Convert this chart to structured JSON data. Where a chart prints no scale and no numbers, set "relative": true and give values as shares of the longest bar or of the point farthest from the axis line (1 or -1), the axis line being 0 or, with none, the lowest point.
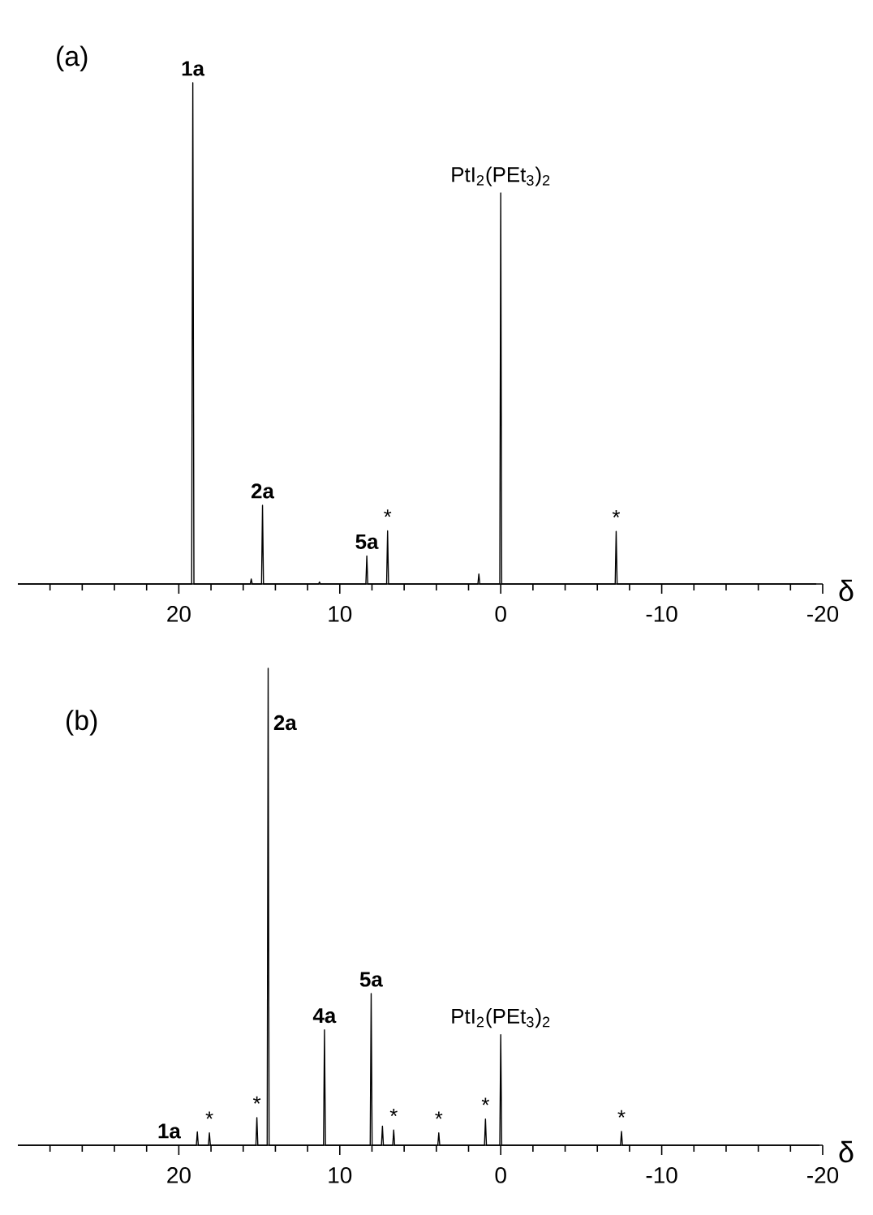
{
  "chart_data": [
    {
      "type": "line",
      "relative": true,
      "xlabel": "δ",
      "xlim": [
        30,
        -20
      ],
      "xticks": [
        {
          "value": 28,
          "label": null
        },
        {
          "value": 26,
          "label": null
        },
        {
          "value": 24,
          "label": null
        },
        {
          "value": 22,
          "label": null
        },
        20,
        {
          "value": 18,
          "label": null
        },
        {
          "value": 16,
          "label": null
        },
        {
          "value": 14,
          "label": null
        },
        {
          "value": 12,
          "label": null
        },
        10,
        {
          "value": 8,
          "label": null
        },
        {
          "value": 6,
          "label": null
        },
        {
          "value": 4,
          "label": null
        },
        {
          "value": 2,
          "label": null
        },
        0,
        {
          "value": -2,
          "label": null
        },
        {
          "value": -4,
          "label": null
        },
        {
          "value": -6,
          "label": null
        },
        {
          "value": -8,
          "label": null
        },
        -10,
        {
          "value": -12,
          "label": null
        },
        {
          "value": -14,
          "label": null
        },
        {
          "value": -16,
          "label": null
        },
        {
          "value": -18,
          "label": null
        },
        -20
      ],
      "series": [
        {
          "color": "#000000",
          "x": [
            30,
            19.2,
            19.13,
            19.06,
            15.56,
            15.5,
            15.44,
            14.86,
            14.8,
            14.74,
            11.32,
            11.26,
            11.2,
            8.38,
            8.32,
            8.26,
            7.09,
            7.03,
            6.97,
            1.42,
            1.36,
            1.3,
            0.06,
            0,
            -0.06,
            -7.11,
            -7.17,
            -7.23,
            -19.6
          ],
          "values": [
            0,
            0,
            1,
            0,
            0,
            0.01,
            0,
            0,
            0.157,
            0,
            0,
            0.004,
            0,
            0,
            0.056,
            0,
            0,
            0.106,
            0,
            0,
            0.02,
            0,
            0,
            0.78,
            0,
            0,
            0.105,
            0,
            0
          ]
        }
      ],
      "annotations": [
        "(a)",
        {
          "text": "**1a**",
          "x": 19.13,
          "y": 1
        },
        {
          "text": "**2a**",
          "x": 14.8,
          "y": 0.157
        },
        {
          "text": "**5a**",
          "x": 8.32,
          "y": 0.056
        },
        {
          "text": "*",
          "x": 7.03,
          "y": 0.106
        },
        {
          "text": "PtI$_{2}$(PEt$_{3}$)$_{2}$",
          "x": 0,
          "y": 0.78
        },
        {
          "text": "*",
          "x": -7.17,
          "y": 0.105
        }
      ]
    },
    {
      "type": "line",
      "relative": true,
      "xlabel": "δ",
      "xlim": [
        30,
        -20
      ],
      "xticks": [
        {
          "value": 28,
          "label": null
        },
        {
          "value": 26,
          "label": null
        },
        {
          "value": 24,
          "label": null
        },
        {
          "value": 22,
          "label": null
        },
        20,
        {
          "value": 18,
          "label": null
        },
        {
          "value": 16,
          "label": null
        },
        {
          "value": 14,
          "label": null
        },
        {
          "value": 12,
          "label": null
        },
        10,
        {
          "value": 8,
          "label": null
        },
        {
          "value": 6,
          "label": null
        },
        {
          "value": 4,
          "label": null
        },
        {
          "value": 2,
          "label": null
        },
        0,
        {
          "value": -2,
          "label": null
        },
        {
          "value": -4,
          "label": null
        },
        {
          "value": -6,
          "label": null
        },
        {
          "value": -8,
          "label": null
        },
        -10,
        {
          "value": -12,
          "label": null
        },
        {
          "value": -14,
          "label": null
        },
        {
          "value": -16,
          "label": null
        },
        {
          "value": -18,
          "label": null
        },
        -20
      ],
      "series": [
        {
          "color": "#000000",
          "x": [
            30,
            18.91,
            18.85,
            18.79,
            18.16,
            18.1,
            18.04,
            15.21,
            15.15,
            15.09,
            14.51,
            14.45,
            14.39,
            11.01,
            10.95,
            10.89,
            8.11,
            8.05,
            7.99,
            7.41,
            7.35,
            7.29,
            6.71,
            6.65,
            6.59,
            3.91,
            3.85,
            3.79,
            1.01,
            0.95,
            0.89,
            0.06,
            0,
            -0.06,
            -7.44,
            -7.5,
            -7.56,
            -19.8
          ],
          "values": [
            0,
            0,
            0.028,
            0,
            0,
            0.026,
            0,
            0,
            0.058,
            0,
            0,
            1,
            0,
            0,
            0.242,
            0,
            0,
            0.318,
            0,
            0,
            0.04,
            0,
            0,
            0.032,
            0,
            0,
            0.026,
            0,
            0,
            0.055,
            0,
            0,
            0.232,
            0,
            0,
            0.029,
            0,
            0
          ]
        }
      ],
      "annotations": [
        "(b)",
        {
          "text": "**1a**",
          "x": 20.6,
          "y": 0
        },
        {
          "text": "*",
          "x": 18.1,
          "y": 0.026
        },
        {
          "text": "*",
          "x": 15.15,
          "y": 0.058
        },
        {
          "text": "**2a**",
          "x": 14.45,
          "y": 0.886
        },
        {
          "text": "**4a**",
          "x": 10.95,
          "y": 0.242
        },
        {
          "text": "**5a**",
          "x": 8.05,
          "y": 0.318
        },
        {
          "text": "*",
          "x": 6.65,
          "y": 0.032
        },
        {
          "text": "*",
          "x": 3.85,
          "y": 0.026
        },
        {
          "text": "*",
          "x": 0.95,
          "y": 0.055
        },
        {
          "text": "PtI$_{2}$(PEt$_{3}$)$_{2}$",
          "x": 0,
          "y": 0.232
        },
        {
          "text": "*",
          "x": -7.5,
          "y": 0.029
        }
      ]
    }
  ]
}
